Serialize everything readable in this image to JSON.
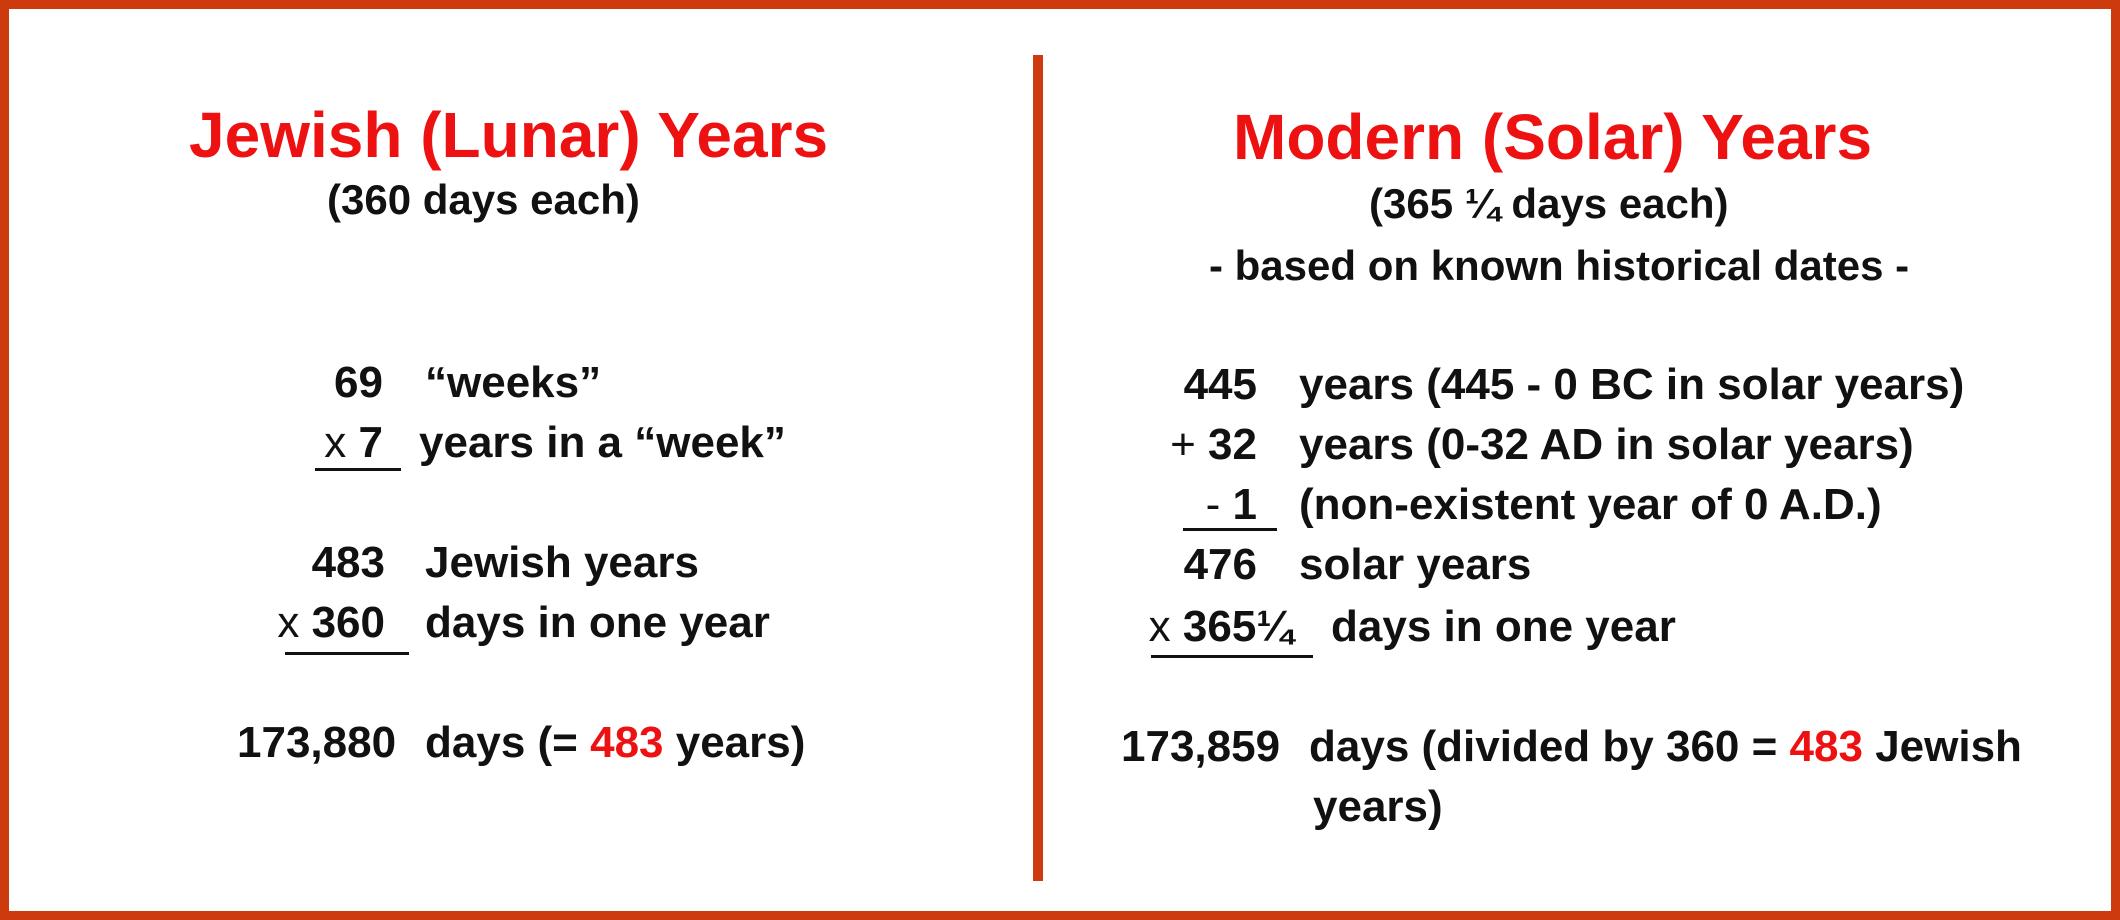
{
  "left": {
    "title": "Jewish (Lunar) Years",
    "subtitle": "(360 days each)",
    "rows": [
      {
        "op": "",
        "num": "69",
        "text": "“weeks”"
      },
      {
        "op": "x ",
        "num": "7",
        "text": "years in a “week”"
      },
      {
        "op": "",
        "num": "483",
        "text": "Jewish years"
      },
      {
        "op": "x ",
        "num": "360",
        "text": "days in one year"
      }
    ],
    "result": {
      "num": "173,880",
      "text_before": "days (= ",
      "highlight": "483",
      "text_after": " years)"
    }
  },
  "right": {
    "title": "Modern (Solar) Years",
    "subtitle": "(365 ¼ days each)",
    "note": "- based on known historical dates -",
    "rows": [
      {
        "op": "",
        "num": "445",
        "text": "years (445 - 0 BC in solar years)"
      },
      {
        "op": "+ ",
        "num": "32",
        "text": "years (0-32 AD in solar years)"
      },
      {
        "op": "-  ",
        "num": "1",
        "text": "(non-existent year of 0 A.D.)"
      },
      {
        "op": "",
        "num": "476",
        "text": "solar years"
      },
      {
        "op": "x ",
        "num": "365¼",
        "text": "days in one year"
      }
    ],
    "result": {
      "num": "173,859",
      "text_before": "days (divided by 360 = ",
      "highlight": "483",
      "text_after": " Jewish",
      "continuation": "years)"
    }
  },
  "colors": {
    "accent": "#ee1111",
    "frame": "#cc3a0e",
    "text": "#111111"
  }
}
